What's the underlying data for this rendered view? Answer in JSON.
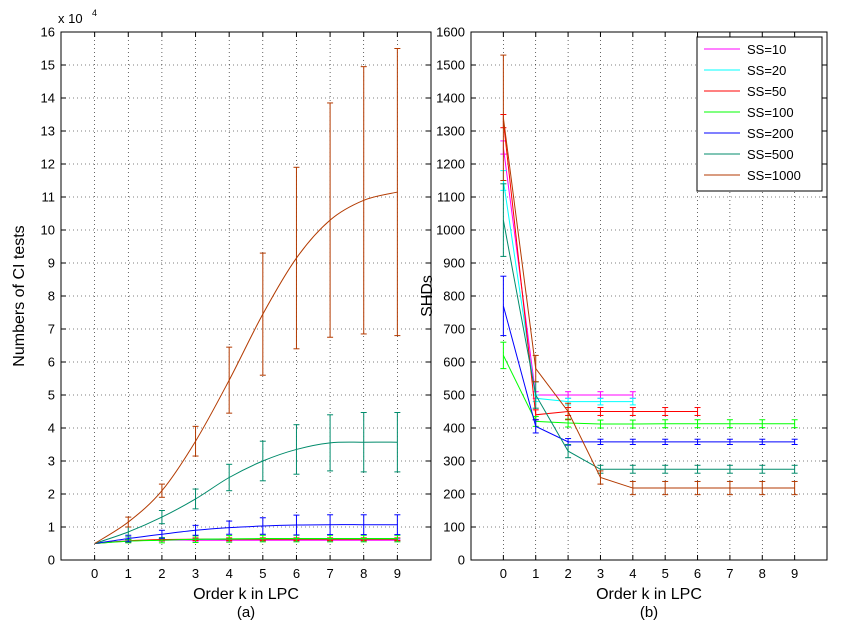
{
  "colors": {
    "ss10": "#ff00ff",
    "ss20": "#00ffff",
    "ss50": "#ff0000",
    "ss100": "#00ff00",
    "ss200": "#0000ff",
    "ss500": "#008b6b",
    "ss1000": "#b33a00"
  },
  "chart_data": [
    {
      "type": "line",
      "panel_label": "(a)",
      "xlabel": "Order k in LPC",
      "ylabel": "Numbers of CI tests",
      "y_multiplier": "x 10",
      "y_multiplier_exp": "4",
      "xlim": [
        -1,
        10
      ],
      "ylim": [
        0,
        16
      ],
      "x_ticks": [
        "0",
        "1",
        "2",
        "3",
        "4",
        "5",
        "6",
        "7",
        "8",
        "9"
      ],
      "y_ticks": [
        "0",
        "1",
        "2",
        "3",
        "4",
        "5",
        "6",
        "7",
        "8",
        "9",
        "10",
        "11",
        "12",
        "13",
        "14",
        "15",
        "16"
      ],
      "grid": true,
      "errorbars": true,
      "x": [
        0,
        1,
        2,
        3,
        4,
        5,
        6,
        7,
        8,
        9
      ],
      "series": [
        {
          "key": "ss10",
          "values": [
            0.5,
            0.58,
            0.6,
            0.6,
            0.6,
            0.6,
            0.6,
            0.6,
            0.6,
            0.6
          ],
          "err": [
            0,
            0.03,
            0.03,
            0.03,
            0.03,
            0.03,
            0.03,
            0.03,
            0.03,
            0.03
          ]
        },
        {
          "key": "ss20",
          "values": [
            0.5,
            0.58,
            0.61,
            0.62,
            0.62,
            0.62,
            0.62,
            0.62,
            0.62,
            0.62
          ],
          "err": [
            0,
            0.03,
            0.03,
            0.03,
            0.03,
            0.03,
            0.03,
            0.03,
            0.03,
            0.03
          ]
        },
        {
          "key": "ss50",
          "values": [
            0.5,
            0.58,
            0.62,
            0.63,
            0.63,
            0.63,
            0.63,
            0.63,
            0.63,
            0.63
          ],
          "err": [
            0,
            0.04,
            0.04,
            0.04,
            0.04,
            0.04,
            0.04,
            0.04,
            0.04,
            0.04
          ]
        },
        {
          "key": "ss100",
          "values": [
            0.5,
            0.57,
            0.6,
            0.63,
            0.64,
            0.65,
            0.65,
            0.65,
            0.65,
            0.65
          ],
          "err": [
            0,
            0.05,
            0.08,
            0.1,
            0.1,
            0.1,
            0.1,
            0.1,
            0.1,
            0.1
          ]
        },
        {
          "key": "ss200",
          "values": [
            0.5,
            0.65,
            0.78,
            0.9,
            0.98,
            1.03,
            1.06,
            1.07,
            1.07,
            1.07
          ],
          "err": [
            0,
            0.1,
            0.12,
            0.15,
            0.2,
            0.25,
            0.3,
            0.3,
            0.3,
            0.3
          ]
        },
        {
          "key": "ss500",
          "values": [
            0.5,
            0.85,
            1.3,
            1.85,
            2.5,
            3.0,
            3.35,
            3.55,
            3.57,
            3.57
          ],
          "err": [
            0,
            0.15,
            0.2,
            0.3,
            0.4,
            0.6,
            0.75,
            0.85,
            0.9,
            0.9
          ]
        },
        {
          "key": "ss1000",
          "values": [
            0.5,
            1.15,
            2.1,
            3.6,
            5.45,
            7.45,
            9.15,
            10.3,
            10.9,
            11.15
          ],
          "err": [
            0,
            0.15,
            0.2,
            0.45,
            1.0,
            1.85,
            2.75,
            3.55,
            4.05,
            4.35
          ]
        }
      ]
    },
    {
      "type": "line",
      "panel_label": "(b)",
      "xlabel": "Order k in LPC",
      "ylabel": "SHDs",
      "xlim": [
        -1,
        10
      ],
      "ylim": [
        0,
        1600
      ],
      "x_ticks": [
        "0",
        "1",
        "2",
        "3",
        "4",
        "5",
        "6",
        "7",
        "8",
        "9"
      ],
      "y_ticks": [
        "0",
        "100",
        "200",
        "300",
        "400",
        "500",
        "600",
        "700",
        "800",
        "900",
        "1000",
        "1100",
        "1200",
        "1300",
        "1400",
        "1500",
        "1600"
      ],
      "grid": true,
      "errorbars": true,
      "legend_position": "top-right",
      "series": [
        {
          "key": "ss10",
          "name": "SS=10",
          "x": [
            0,
            1,
            2,
            3,
            4
          ],
          "values": [
            1250,
            500,
            500,
            500,
            500
          ],
          "err": [
            20,
            10,
            10,
            10,
            10
          ]
        },
        {
          "key": "ss20",
          "name": "SS=20",
          "x": [
            0,
            1,
            2,
            3,
            4
          ],
          "values": [
            1150,
            490,
            480,
            480,
            480
          ],
          "err": [
            30,
            10,
            10,
            10,
            10
          ]
        },
        {
          "key": "ss50",
          "name": "SS=50",
          "x": [
            0,
            1,
            2,
            3,
            4,
            5,
            6
          ],
          "values": [
            1330,
            440,
            450,
            450,
            450,
            450,
            450
          ],
          "err": [
            20,
            15,
            12,
            12,
            12,
            12,
            12
          ]
        },
        {
          "key": "ss100",
          "name": "SS=100",
          "x": [
            0,
            1,
            2,
            3,
            4,
            5,
            6,
            7,
            8,
            9
          ],
          "values": [
            620,
            420,
            415,
            412,
            412,
            413,
            413,
            413,
            413,
            413
          ],
          "err": [
            40,
            15,
            12,
            12,
            12,
            12,
            12,
            12,
            12,
            12
          ]
        },
        {
          "key": "ss200",
          "name": "SS=200",
          "x": [
            0,
            1,
            2,
            3,
            4,
            5,
            6,
            7,
            8,
            9
          ],
          "values": [
            770,
            405,
            358,
            358,
            358,
            358,
            358,
            358,
            358,
            358
          ],
          "err": [
            90,
            20,
            10,
            8,
            8,
            8,
            8,
            8,
            8,
            8
          ]
        },
        {
          "key": "ss500",
          "name": "SS=500",
          "x": [
            0,
            1,
            2,
            3,
            4,
            5,
            6,
            7,
            8,
            9
          ],
          "values": [
            1030,
            500,
            330,
            275,
            275,
            275,
            275,
            275,
            275,
            275
          ],
          "err": [
            110,
            40,
            20,
            12,
            12,
            12,
            12,
            12,
            12,
            12
          ]
        },
        {
          "key": "ss1000",
          "name": "SS=1000",
          "x": [
            0,
            1,
            2,
            3,
            4,
            5,
            6,
            7,
            8,
            9
          ],
          "values": [
            1340,
            580,
            450,
            250,
            218,
            218,
            218,
            218,
            218,
            218
          ],
          "err": [
            190,
            40,
            25,
            20,
            20,
            20,
            20,
            20,
            20,
            20
          ]
        }
      ]
    }
  ]
}
